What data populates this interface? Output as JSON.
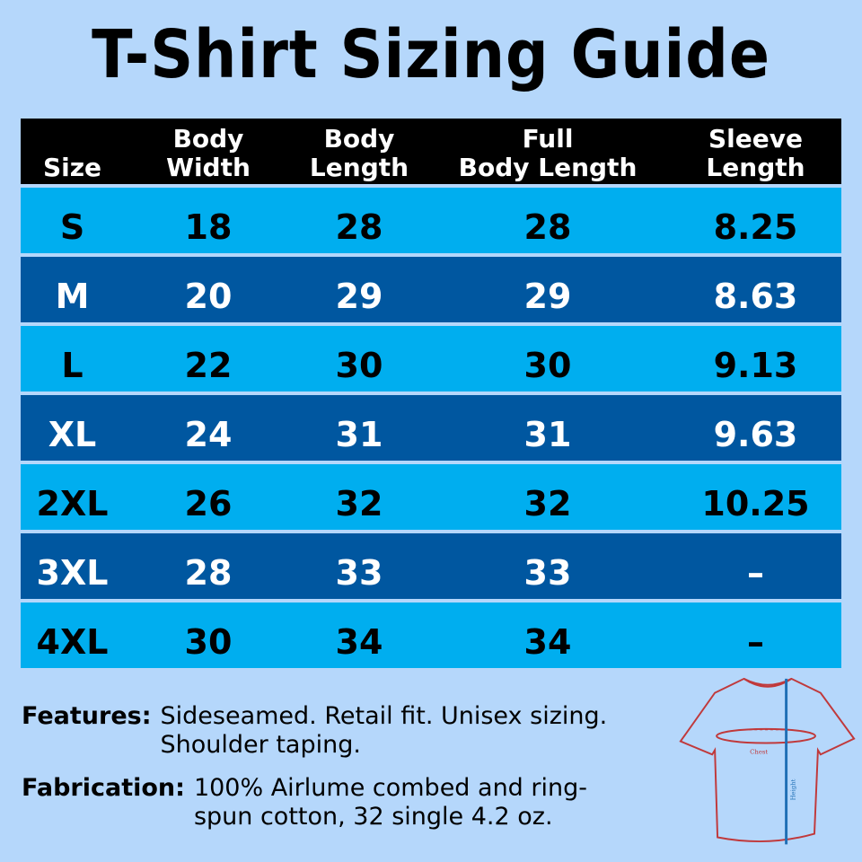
{
  "title": "T-Shirt Sizing Guide",
  "table": {
    "headers": [
      "Size",
      "Body Width",
      "Body Length",
      "Full Body Length",
      "Sleeve Length"
    ],
    "header_lines": [
      [
        "",
        "Size"
      ],
      [
        "Body",
        "Width"
      ],
      [
        "Body",
        "Length"
      ],
      [
        "Full",
        "Body Length"
      ],
      [
        "Sleeve",
        "Length"
      ]
    ],
    "rows": [
      [
        "S",
        "18",
        "28",
        "28",
        "8.25"
      ],
      [
        "M",
        "20",
        "29",
        "29",
        "8.63"
      ],
      [
        "L",
        "22",
        "30",
        "30",
        "9.13"
      ],
      [
        "XL",
        "24",
        "31",
        "31",
        "9.63"
      ],
      [
        "2XL",
        "26",
        "32",
        "32",
        "10.25"
      ],
      [
        "3XL",
        "28",
        "33",
        "33",
        "–"
      ],
      [
        "4XL",
        "30",
        "34",
        "34",
        "–"
      ]
    ]
  },
  "notes": [
    {
      "label": "Features:",
      "text": "Sideseamed. Retail fit. Unisex sizing. Shoulder taping."
    },
    {
      "label": "Fabrication:",
      "text": "100% Airlume combed and ring-spun cotton, 32 single 4.2 oz."
    }
  ],
  "diagram": {
    "chest_label": "Chest",
    "height_label": "Height"
  },
  "colors": {
    "background": "#b5d7fb",
    "row_light": "#00aeef",
    "row_dark": "#0057a0",
    "header": "#000000",
    "shirt_outline": "#c0393b",
    "height_arrow": "#1f6fb5"
  }
}
